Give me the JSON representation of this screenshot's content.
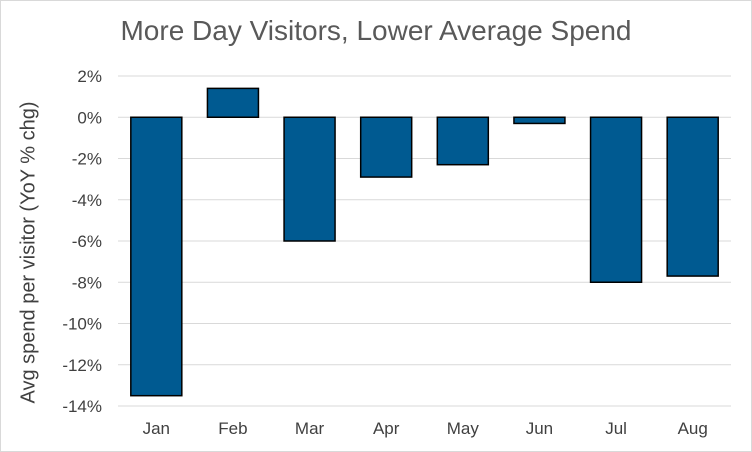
{
  "chart_data": {
    "type": "bar",
    "title": "More Day Visitors, Lower Average Spend",
    "xlabel": "",
    "ylabel": "Avg spend per visitor (YoY % chg)",
    "categories": [
      "Jan",
      "Feb",
      "Mar",
      "Apr",
      "May",
      "Jun",
      "Jul",
      "Aug"
    ],
    "values": [
      -13.5,
      1.4,
      -6.0,
      -2.9,
      -2.3,
      -0.3,
      -8.0,
      -7.7
    ],
    "ylim": [
      -14,
      2
    ],
    "yticks": [
      2,
      0,
      -2,
      -4,
      -6,
      -8,
      -10,
      -12,
      -14
    ],
    "ytick_labels": [
      "2%",
      "0%",
      "-2%",
      "-4%",
      "-6%",
      "-8%",
      "-10%",
      "-12%",
      "-14%"
    ],
    "grid": true,
    "bar_color": "#005a91",
    "bar_edge_color": "#000000",
    "grid_color": "#d9d9d9"
  }
}
